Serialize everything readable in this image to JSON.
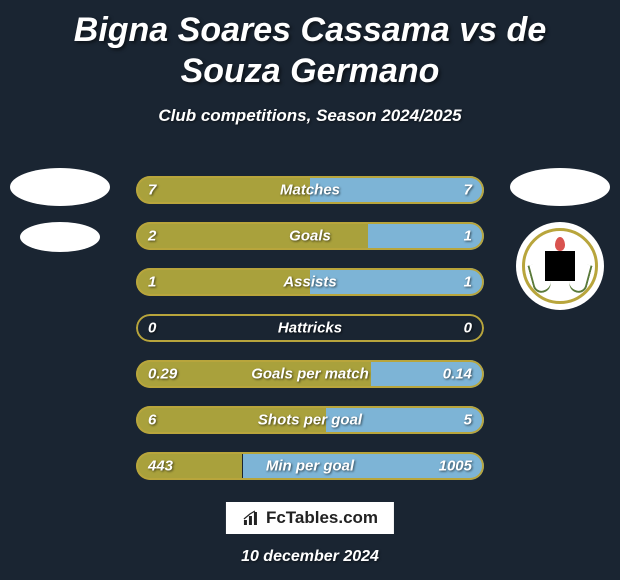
{
  "background_color": "#1a2532",
  "text_color": "#ffffff",
  "title": {
    "text": "Bigna Soares Cassama vs de Souza Germano",
    "fontsize": 34
  },
  "subtitle": {
    "text": "Club competitions, Season 2024/2025",
    "fontsize": 17
  },
  "left_team": {
    "has_player_photo": false,
    "has_club_logo": false
  },
  "right_team": {
    "has_player_photo": false,
    "has_club_logo": true,
    "club_logo_desc": "ittihad-kalba-crest"
  },
  "colors": {
    "player1": "#a9a13c",
    "player2": "#7db4d6",
    "border": "#b8a53c",
    "bar_label_fontsize": 15,
    "bar_value_fontsize": 15
  },
  "stats": [
    {
      "label": "Matches",
      "left_val": "7",
      "right_val": "7",
      "left_pct": 50,
      "right_pct": 50
    },
    {
      "label": "Goals",
      "left_val": "2",
      "right_val": "1",
      "left_pct": 66.7,
      "right_pct": 33.3
    },
    {
      "label": "Assists",
      "left_val": "1",
      "right_val": "1",
      "left_pct": 50,
      "right_pct": 50
    },
    {
      "label": "Hattricks",
      "left_val": "0",
      "right_val": "0",
      "left_pct": 0,
      "right_pct": 0
    },
    {
      "label": "Goals per match",
      "left_val": "0.29",
      "right_val": "0.14",
      "left_pct": 67.4,
      "right_pct": 32.6
    },
    {
      "label": "Shots per goal",
      "left_val": "6",
      "right_val": "5",
      "left_pct": 54.5,
      "right_pct": 45.5
    },
    {
      "label": "Min per goal",
      "left_val": "443",
      "right_val": "1005",
      "left_pct": 30.6,
      "right_pct": 69.4
    }
  ],
  "branding": {
    "text": "FcTables.com",
    "fontsize": 17
  },
  "date": {
    "text": "10 december 2024",
    "fontsize": 16
  }
}
